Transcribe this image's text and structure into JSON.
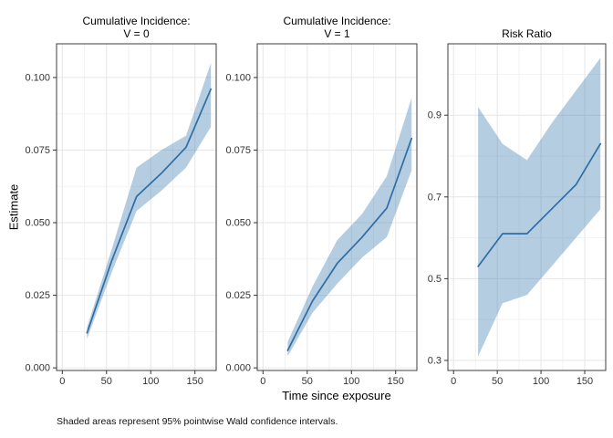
{
  "figure": {
    "y_axis_label": "Estimate",
    "x_axis_label": "Time since exposure",
    "caption": "Shaded areas represent 95% pointwise Wald confidence intervals.",
    "colors": {
      "line": "#2e6da4",
      "band": "rgba(70,130,180,0.40)",
      "grid_major": "#e6e6e6",
      "grid_minor": "#f2f2f2",
      "panel_border": "#3c3c3c",
      "tick_mark": "#333333",
      "tick_text": "#333333"
    }
  },
  "chart_data": [
    {
      "type": "area",
      "title": [
        "Cumulative Incidence:",
        "V = 0"
      ],
      "x": [
        28,
        56,
        84,
        112,
        140,
        168
      ],
      "series": [
        {
          "name": "estimate",
          "values": [
            0.012,
            0.037,
            0.059,
            0.067,
            0.076,
            0.096
          ]
        },
        {
          "name": "lower_95ci",
          "values": [
            0.01,
            0.033,
            0.054,
            0.061,
            0.069,
            0.083
          ]
        },
        {
          "name": "upper_95ci",
          "values": [
            0.014,
            0.041,
            0.069,
            0.075,
            0.08,
            0.105
          ]
        }
      ],
      "xlim": [
        -6.5,
        174.0
      ],
      "ylim": [
        -0.0009,
        0.1116
      ],
      "x_ticks": [
        0,
        50,
        100,
        150
      ],
      "x_tick_labels": [
        "0",
        "50",
        "100",
        "150"
      ],
      "x_minor": [
        25,
        75,
        125,
        175
      ],
      "y_ticks": [
        0.0,
        0.025,
        0.05,
        0.075,
        0.1
      ],
      "y_tick_labels": [
        "0.000",
        "0.025",
        "0.050",
        "0.075",
        "0.100"
      ],
      "y_minor": [
        0.0125,
        0.0375,
        0.0625,
        0.0875
      ],
      "grid": true,
      "legend": "none"
    },
    {
      "type": "area",
      "title": [
        "Cumulative Incidence:",
        "V = 1"
      ],
      "x": [
        28,
        56,
        84,
        112,
        140,
        168
      ],
      "series": [
        {
          "name": "estimate",
          "values": [
            0.006,
            0.023,
            0.036,
            0.045,
            0.055,
            0.079
          ]
        },
        {
          "name": "lower_95ci",
          "values": [
            0.004,
            0.019,
            0.029,
            0.038,
            0.045,
            0.068
          ]
        },
        {
          "name": "upper_95ci",
          "values": [
            0.009,
            0.028,
            0.044,
            0.053,
            0.066,
            0.093
          ]
        }
      ],
      "xlim": [
        -6.5,
        174.0
      ],
      "ylim": [
        -0.0009,
        0.1116
      ],
      "x_ticks": [
        0,
        50,
        100,
        150
      ],
      "x_tick_labels": [
        "0",
        "50",
        "100",
        "150"
      ],
      "x_minor": [
        25,
        75,
        125,
        175
      ],
      "y_ticks": [
        0.0,
        0.025,
        0.05,
        0.075,
        0.1
      ],
      "y_tick_labels": [
        "0.000",
        "0.025",
        "0.050",
        "0.075",
        "0.100"
      ],
      "y_minor": [
        0.0125,
        0.0375,
        0.0625,
        0.0875
      ],
      "grid": true,
      "legend": "none"
    },
    {
      "type": "area",
      "title": [
        "Risk Ratio"
      ],
      "x": [
        28,
        56,
        84,
        112,
        140,
        168
      ],
      "series": [
        {
          "name": "estimate",
          "values": [
            0.53,
            0.61,
            0.61,
            0.67,
            0.73,
            0.83
          ]
        },
        {
          "name": "lower_95ci",
          "values": [
            0.31,
            0.44,
            0.46,
            0.53,
            0.6,
            0.67
          ]
        },
        {
          "name": "upper_95ci",
          "values": [
            0.92,
            0.83,
            0.79,
            0.88,
            0.96,
            1.04
          ]
        }
      ],
      "xlim": [
        -6.5,
        174.0
      ],
      "ylim": [
        0.2754,
        1.0746
      ],
      "x_ticks": [
        0,
        50,
        100,
        150
      ],
      "x_tick_labels": [
        "0",
        "50",
        "100",
        "150"
      ],
      "x_minor": [
        25,
        75,
        125,
        175
      ],
      "y_ticks": [
        0.3,
        0.5,
        0.7,
        0.9
      ],
      "y_tick_labels": [
        "0.3",
        "0.5",
        "0.7",
        "0.9"
      ],
      "y_minor": [
        0.4,
        0.6,
        0.8,
        1.0
      ],
      "grid": true,
      "legend": "none"
    }
  ]
}
